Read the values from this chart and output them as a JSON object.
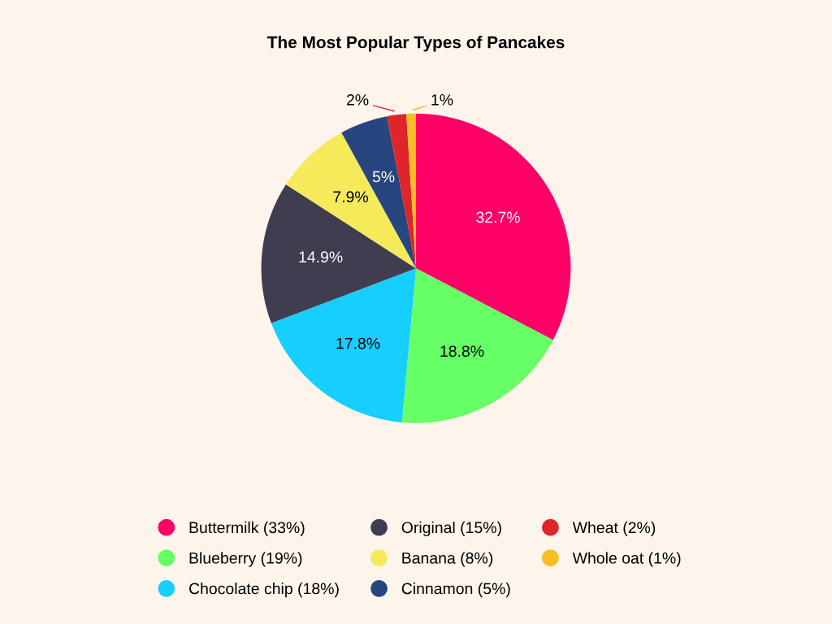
{
  "chart_data": {
    "type": "pie",
    "title": "The Most Popular Types of Pancakes",
    "categories": [
      "Buttermilk (33%)",
      "Blueberry (19%)",
      "Chocolate chip (18%)",
      "Original (15%)",
      "Banana (8%)",
      "Cinnamon (5%)",
      "Wheat (2%)",
      "Whole oat (1%)"
    ],
    "values": [
      32.7,
      18.8,
      17.8,
      14.9,
      7.9,
      5,
      2,
      1
    ],
    "value_labels": [
      "32.7%",
      "18.8%",
      "17.8%",
      "14.9%",
      "7.9%",
      "5%",
      "2%",
      "1%"
    ],
    "colors": [
      "#ff0066",
      "#66ff66",
      "#17cfff",
      "#403d50",
      "#f5ea5a",
      "#27467f",
      "#e0252a",
      "#f8bd22"
    ],
    "legend": "bottom"
  }
}
